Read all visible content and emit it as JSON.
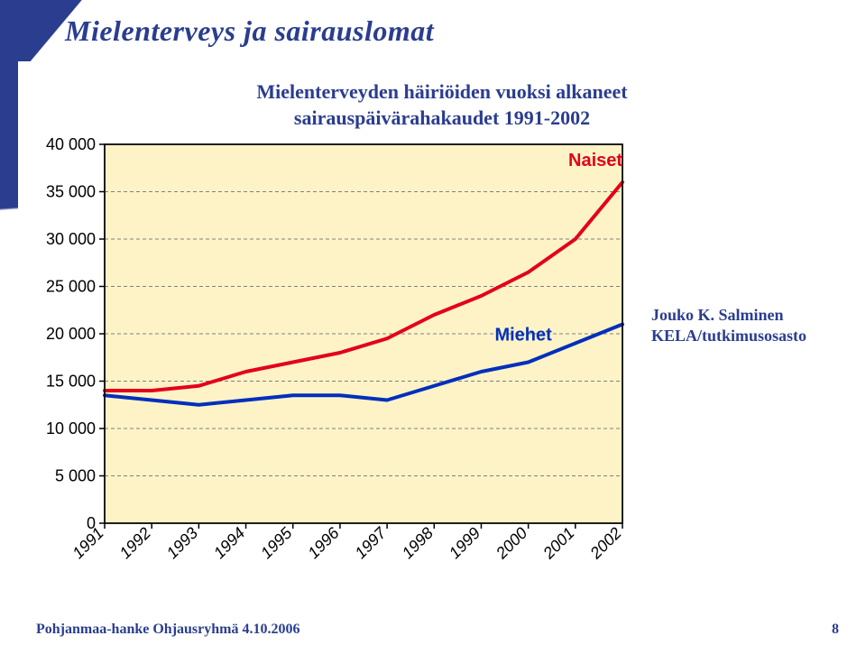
{
  "title": "Mielenterveys ja sairauslomat",
  "subtitle_line1": "Mielenterveyden häiriöiden vuoksi alkaneet",
  "subtitle_line2": "sairauspäivärahakaudet 1991-2002",
  "credit_line1": "Jouko K. Salminen",
  "credit_line2": "KELA/tutkimusosasto",
  "footer": "Pohjanmaa-hanke Ohjausryhmä  4.10.2006",
  "page_number": "8",
  "chart": {
    "type": "line",
    "plot_background": "#fdf3c7",
    "outer_background": "#ffffff",
    "border_color": "#000000",
    "grid_color": "#808080",
    "grid_dash": "4 3",
    "y": {
      "min": 0,
      "max": 40000,
      "ticks": [
        0,
        5000,
        10000,
        15000,
        20000,
        25000,
        30000,
        35000,
        40000
      ],
      "tick_labels": [
        "0",
        "5 000",
        "10 000",
        "15 000",
        "20 000",
        "25 000",
        "30 000",
        "35 000",
        "40 000"
      ],
      "label_fontsize": 18,
      "label_color": "#000000"
    },
    "x": {
      "categories": [
        "1991",
        "1992",
        "1993",
        "1994",
        "1995",
        "1996",
        "1997",
        "1998",
        "1999",
        "2000",
        "2001",
        "2002"
      ],
      "label_fontsize": 18,
      "label_color": "#000000",
      "tick_rotation": -45
    },
    "series": [
      {
        "name": "Naiset",
        "label": "Naiset",
        "color": "#e4001b",
        "width": 4,
        "label_fontsize": 20,
        "label_weight": "bold",
        "values": [
          14000,
          14000,
          14500,
          16000,
          17000,
          18000,
          19500,
          22000,
          24000,
          26500,
          30000,
          36000
        ]
      },
      {
        "name": "Miehet",
        "label": "Miehet",
        "color": "#002fbb",
        "width": 4,
        "label_fontsize": 20,
        "label_weight": "bold",
        "values": [
          13500,
          13000,
          12500,
          13000,
          13500,
          13500,
          13000,
          14500,
          16000,
          17000,
          19000,
          21000
        ]
      }
    ]
  }
}
